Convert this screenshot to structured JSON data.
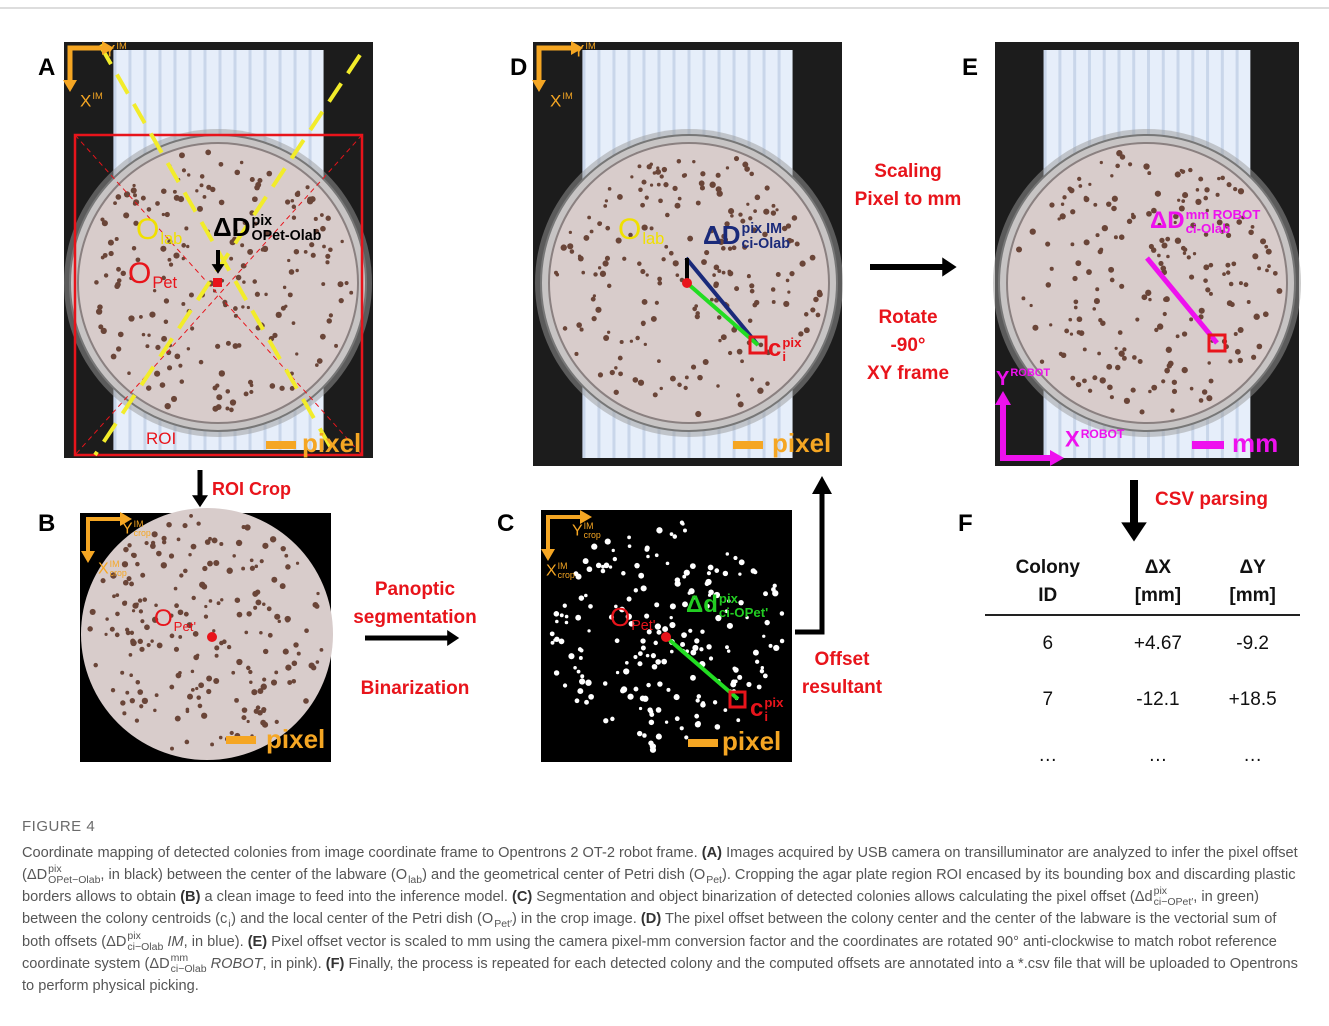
{
  "figure": {
    "A": {
      "letter": "A",
      "y_axis": {
        "base": "Y",
        "sup": "IM"
      },
      "x_axis": {
        "base": "X",
        "sup": "IM"
      },
      "o_lab": {
        "base": "O",
        "sub": "lab"
      },
      "o_pet": {
        "base": "O",
        "sub": "Pet"
      },
      "offset": {
        "base": "ΔD",
        "sup": "pix",
        "sub": "OPet-Olab"
      },
      "roi": "ROI",
      "scale": "pixel"
    },
    "B": {
      "letter": "B",
      "y_axis": {
        "base": "Y",
        "sup": "IM",
        "sub": "crop"
      },
      "x_axis": {
        "base": "X",
        "sup": "IM",
        "sub": "crop"
      },
      "o_pet": {
        "base": "O",
        "sub": "Pet'"
      },
      "scale": "pixel"
    },
    "C": {
      "letter": "C",
      "y_axis": {
        "base": "Y",
        "sup": "IM",
        "sub": "crop"
      },
      "x_axis": {
        "base": "X",
        "sup": "IM",
        "sub": "crop"
      },
      "o_pet": {
        "base": "O",
        "sub": "Pet'"
      },
      "offset": {
        "base": "Δd",
        "sup": "pix",
        "sub": "ci-OPet'"
      },
      "colony": {
        "base": "c",
        "sup": "pix",
        "sub": "i"
      },
      "scale": "pixel"
    },
    "D": {
      "letter": "D",
      "y_axis": {
        "base": "Y",
        "sup": "IM"
      },
      "x_axis": {
        "base": "X",
        "sup": "IM"
      },
      "o_lab": {
        "base": "O",
        "sub": "lab"
      },
      "offset": {
        "base": "ΔD",
        "sup": "pix IM",
        "sub": "ci-Olab"
      },
      "colony": {
        "base": "c",
        "sup": "pix",
        "sub": "i"
      },
      "scale": "pixel"
    },
    "E": {
      "letter": "E",
      "offset": {
        "base": "ΔD",
        "sup": "mm ROBOT",
        "sub": "ci-Olab"
      },
      "y_axis": {
        "base": "Y",
        "sup": "ROBOT"
      },
      "x_axis": {
        "base": "X",
        "sup": "ROBOT"
      },
      "scale": "mm"
    },
    "F": {
      "letter": "F",
      "table": {
        "header": [
          [
            "Colony",
            "ID"
          ],
          [
            "ΔX",
            "[mm]"
          ],
          [
            "ΔY",
            "[mm]"
          ]
        ],
        "rows": [
          [
            "6",
            "+4.67",
            "-9.2"
          ],
          [
            "7",
            "-12.1",
            "+18.5"
          ],
          [
            "…",
            "…",
            "…"
          ]
        ]
      }
    }
  },
  "steps": {
    "roi_crop": "ROI Crop",
    "panoptic": [
      "Panoptic",
      "segmentation"
    ],
    "binarization": "Binarization",
    "scaling": [
      "Scaling",
      "Pixel to mm"
    ],
    "rotate": [
      "Rotate",
      "-90°",
      "XY frame"
    ],
    "offset": [
      "Offset",
      "resultant"
    ],
    "csv": "CSV parsing"
  },
  "caption": {
    "label": "FIGURE 4",
    "runs": [
      "Coordinate mapping of detected colonies from image coordinate frame to Opentrons 2 OT-2 robot frame. ",
      {
        "bold": "(A)"
      },
      " Images acquired by USB camera on transilluminator are analyzed to infer the pixel offset (",
      {
        "base": "ΔD",
        "sup": "pix",
        "sub": "OPet−Olab"
      },
      ", in black) between the center of the labware (",
      {
        "base": "O",
        "sub": "lab"
      },
      ") and the geometrical center of Petri dish (",
      {
        "base": "O",
        "sub": "Pet"
      },
      "). Cropping the agar plate region ROI encased by its bounding box and discarding plastic borders allows to obtain ",
      {
        "bold": "(B)"
      },
      " a clean image to feed into the inference model. ",
      {
        "bold": "(C)"
      },
      " Segmentation and object binarization of detected colonies allows calculating the pixel offset (",
      {
        "base": "Δd",
        "sup": "pix",
        "sub": "ci−OPet′"
      },
      ", in green) between the colony centroids (",
      {
        "base": "c",
        "sub": "i"
      },
      ") and the local center of the Petri dish (",
      {
        "base": "O",
        "sub": "Pet′"
      },
      ") in the crop image. ",
      {
        "bold": "(D)"
      },
      " The pixel offset between the colony center and the center of the labware is the vectorial sum of both offsets (",
      {
        "base": "ΔD",
        "sup": "pix",
        "sub": "ci−Olab"
      },
      {
        "italic": " IM"
      },
      ", in blue). ",
      {
        "bold": "(E)"
      },
      " Pixel offset vector is scaled to mm using the camera pixel-mm conversion factor and the coordinates are rotated 90° anti-clockwise to match robot reference coordinate system (",
      {
        "base": "ΔD",
        "sup": "mm",
        "sub": "ci−Olab"
      },
      {
        "italic": " ROBOT"
      },
      ", in pink). ",
      {
        "bold": "(F)"
      },
      " Finally, the process is repeated for each detected colony and the computed offsets are annotated into a *.csv file that will be uploaded to Opentrons to perform physical picking."
    ]
  }
}
